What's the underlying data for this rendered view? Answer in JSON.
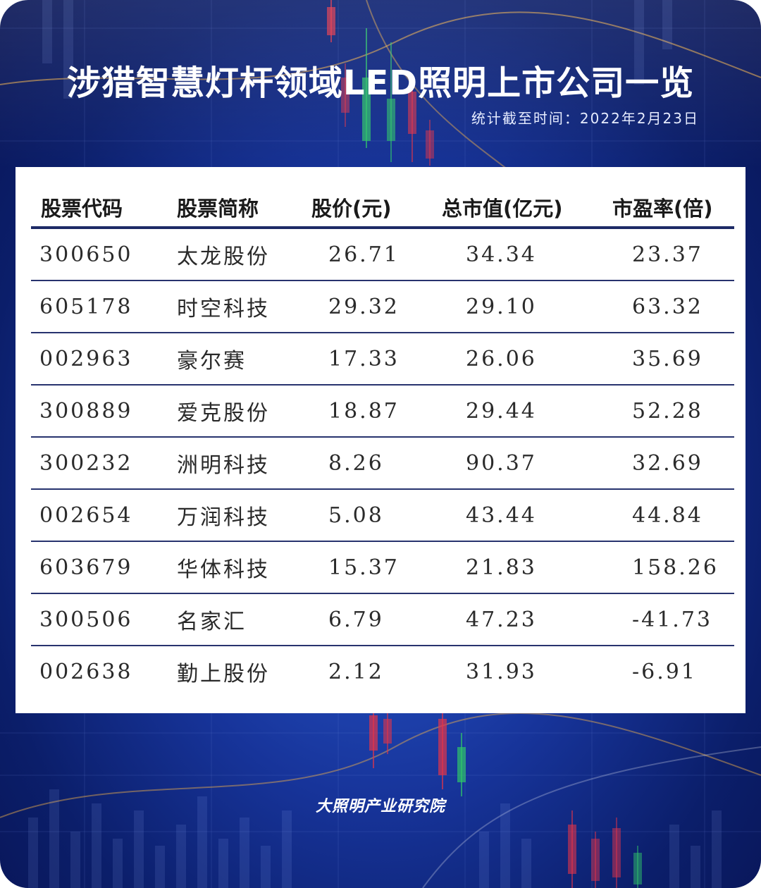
{
  "title": "涉猎智慧灯杆领域LED照明上市公司一览",
  "subtitle": "统计截至时间：2022年2月23日",
  "table": {
    "headers": [
      "股票代码",
      "股票简称",
      "股价(元)",
      "总市值(亿元)",
      "市盈率(倍)"
    ],
    "rows": [
      {
        "code": "300650",
        "name": "太龙股份",
        "price": "26.71",
        "cap": "34.34",
        "pe": "23.37"
      },
      {
        "code": "605178",
        "name": "时空科技",
        "price": "29.32",
        "cap": "29.10",
        "pe": "63.32"
      },
      {
        "code": "002963",
        "name": "豪尔赛",
        "price": "17.33",
        "cap": "26.06",
        "pe": "35.69"
      },
      {
        "code": "300889",
        "name": "爱克股份",
        "price": "18.87",
        "cap": "29.44",
        "pe": "52.28"
      },
      {
        "code": "300232",
        "name": "洲明科技",
        "price": "8.26",
        "cap": "90.37",
        "pe": "32.69"
      },
      {
        "code": "002654",
        "name": "万润科技",
        "price": "5.08",
        "cap": "43.44",
        "pe": "44.84"
      },
      {
        "code": "603679",
        "name": "华体科技",
        "price": "15.37",
        "cap": "21.83",
        "pe": "158.26"
      },
      {
        "code": "300506",
        "name": "名家汇",
        "price": "6.79",
        "cap": "47.23",
        "pe": "-41.73"
      },
      {
        "code": "002638",
        "name": "勤上股份",
        "price": "2.12",
        "cap": "31.93",
        "pe": "-6.91"
      }
    ]
  },
  "logo": "大照明产业研究院",
  "colors": {
    "background": "#17349a",
    "header_rule": "#1d2a66",
    "candle_red": "#e0344a",
    "candle_green": "#2fc46a"
  }
}
